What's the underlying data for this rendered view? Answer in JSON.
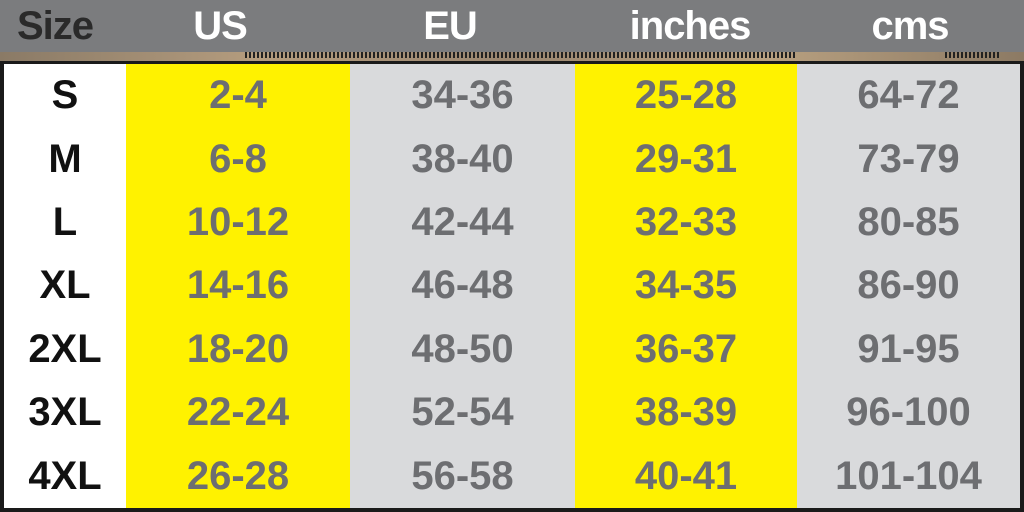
{
  "chart_data": {
    "type": "table",
    "columns": [
      "Size",
      "US",
      "EU",
      "inches",
      "cms"
    ],
    "rows": [
      [
        "S",
        "2-4",
        "34-36",
        "25-28",
        "64-72"
      ],
      [
        "M",
        "6-8",
        "38-40",
        "29-31",
        "73-79"
      ],
      [
        "L",
        "10-12",
        "42-44",
        "32-33",
        "80-85"
      ],
      [
        "XL",
        "14-16",
        "46-48",
        "34-35",
        "86-90"
      ],
      [
        "2XL",
        "18-20",
        "48-50",
        "36-37",
        "91-95"
      ],
      [
        "3XL",
        "22-24",
        "52-54",
        "38-39",
        "96-100"
      ],
      [
        "4XL",
        "26-28",
        "56-58",
        "40-41",
        "101-104"
      ]
    ]
  },
  "colors": {
    "header_bg": "#7b7c7e",
    "yellow": "#fff200",
    "gray": "#d9dadc",
    "value_text": "#6d6e71",
    "size_header_text": "#2a2a2a"
  }
}
